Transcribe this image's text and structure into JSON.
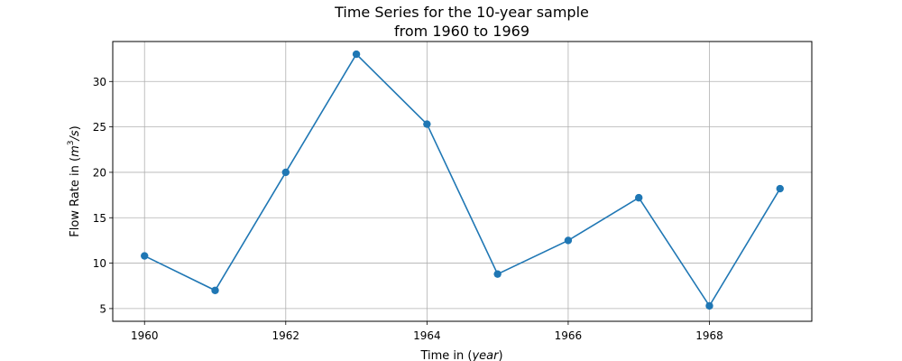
{
  "chart_data": {
    "type": "line",
    "title": "Time Series for the 10-year sample",
    "subtitle": "from 1960 to 1969",
    "xlabel": "Time in (year)",
    "xlabel_prefix": "Time in (",
    "xlabel_var": "year",
    "xlabel_suffix": ")",
    "ylabel": "Flow Rate in (m³/s)",
    "ylabel_prefix": "Flow Rate in (",
    "ylabel_unit_m": "m",
    "ylabel_unit_exp": "3",
    "ylabel_unit_tail": "/s",
    "ylabel_suffix": ")",
    "x": [
      1960,
      1961,
      1962,
      1963,
      1964,
      1965,
      1966,
      1967,
      1968,
      1969
    ],
    "values": [
      10.8,
      7.0,
      20.0,
      33.0,
      25.3,
      8.8,
      12.5,
      17.2,
      5.3,
      18.2
    ],
    "xlim": [
      1959.55,
      1969.45
    ],
    "ylim": [
      3.6,
      34.4
    ],
    "xticks": [
      1960,
      1962,
      1964,
      1966,
      1968
    ],
    "xtick_labels": [
      "1960",
      "1962",
      "1964",
      "1966",
      "1968"
    ],
    "yticks": [
      5,
      10,
      15,
      20,
      25,
      30
    ],
    "ytick_labels": [
      "5",
      "10",
      "15",
      "20",
      "25",
      "30"
    ],
    "grid": true,
    "line_color": "#1f77b4",
    "marker": "circle"
  }
}
